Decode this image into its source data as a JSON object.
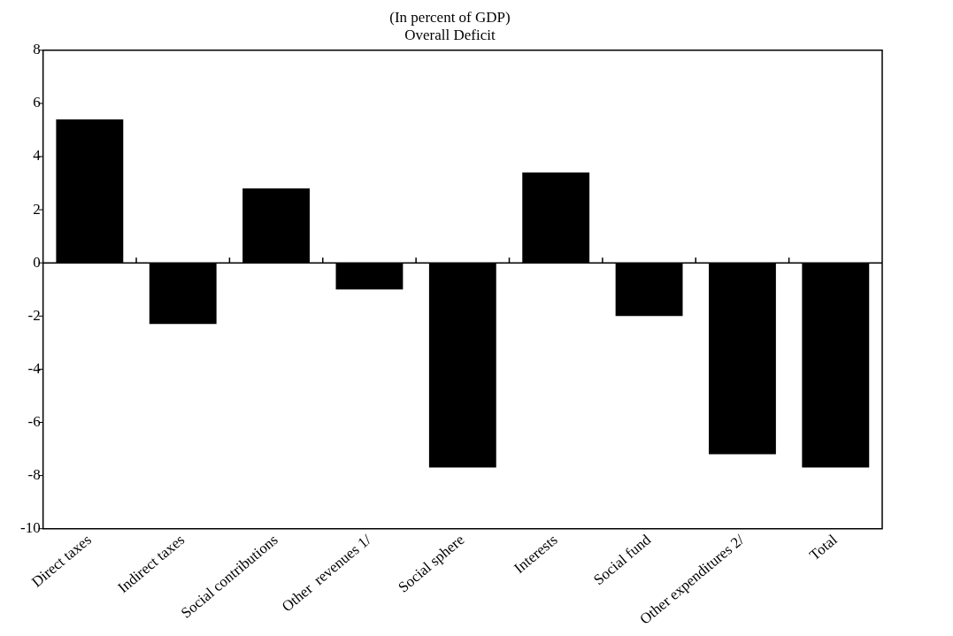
{
  "chart_data": {
    "type": "bar",
    "title": "(In percent of GDP)",
    "subtitle": "Overall Deficit",
    "categories": [
      "Direct taxes",
      "Indirect taxes",
      "Social contributions",
      "Other  revenues 1/",
      "Social sphere",
      "Interests",
      "Social fund",
      "Other expenditures 2/",
      "Total"
    ],
    "values": [
      5.4,
      -2.3,
      2.8,
      -1.0,
      -7.7,
      3.4,
      -2.0,
      -7.2,
      -7.7
    ],
    "color": "#000000",
    "ylim": [
      -10,
      8
    ],
    "yticks": [
      -10,
      -8,
      -6,
      -4,
      -2,
      0,
      2,
      4,
      6,
      8
    ],
    "grid": false,
    "ref_lines": [
      {
        "axis": "y",
        "value": 0
      }
    ],
    "legend": false
  }
}
